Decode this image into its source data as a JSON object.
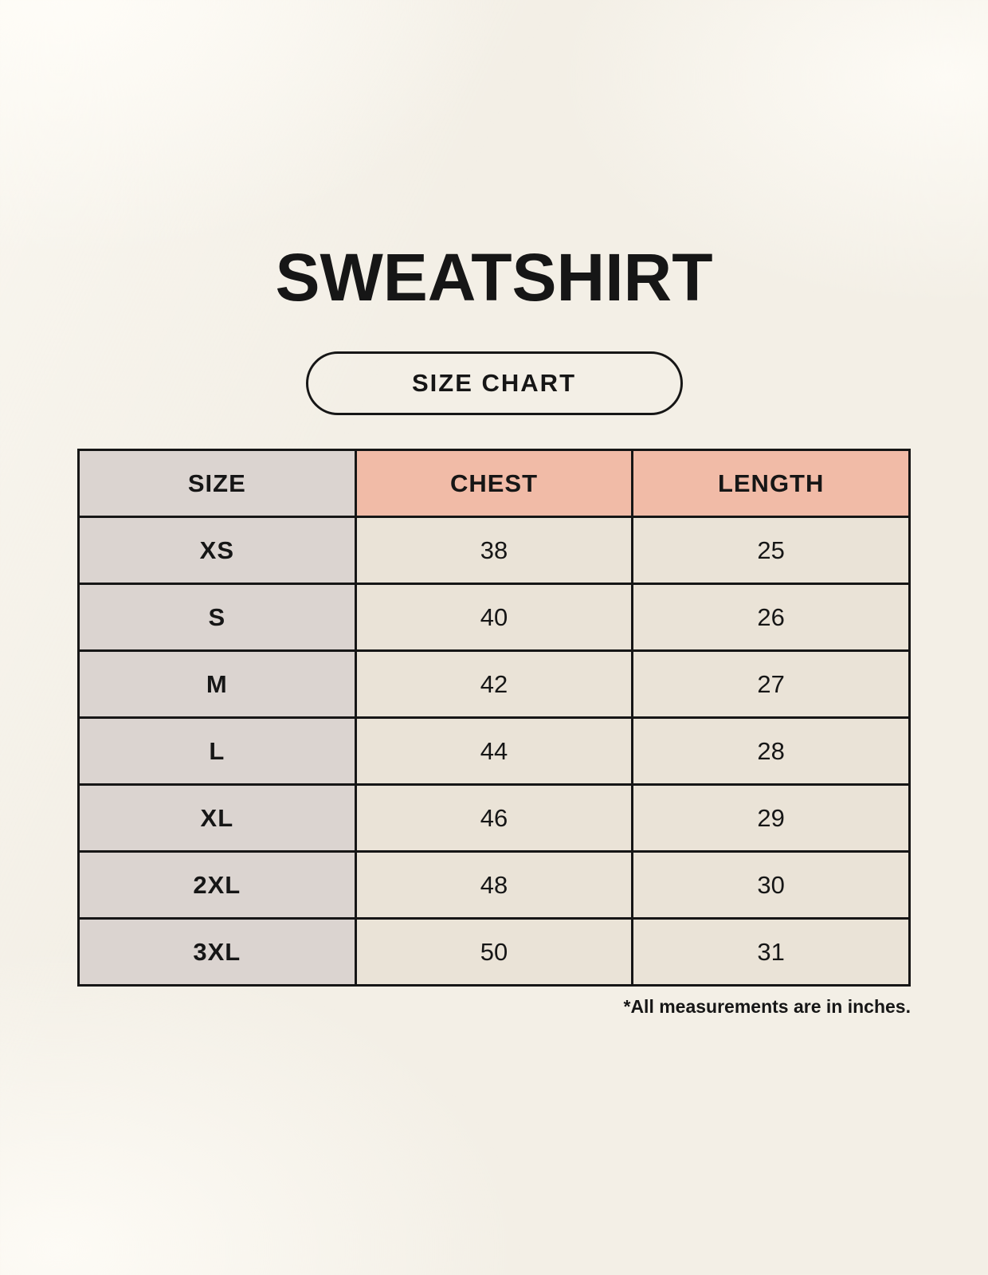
{
  "title": "SWEATSHIRT",
  "badge_label": "SIZE CHART",
  "footnote": "*All measurements are in inches.",
  "chart_data": {
    "type": "table",
    "title": "SWEATSHIRT",
    "subtitle": "SIZE CHART",
    "columns": [
      "SIZE",
      "CHEST",
      "LENGTH"
    ],
    "rows": [
      [
        "XS",
        "38",
        "25"
      ],
      [
        "S",
        "40",
        "26"
      ],
      [
        "M",
        "42",
        "27"
      ],
      [
        "L",
        "44",
        "28"
      ],
      [
        "XL",
        "46",
        "29"
      ],
      [
        "2XL",
        "48",
        "30"
      ],
      [
        "3XL",
        "50",
        "31"
      ]
    ],
    "units": "inches",
    "note": "*All measurements are in inches."
  },
  "colors": {
    "background": "#F3EFE6",
    "size_column_bg": "#DBD4D0",
    "header_accent_bg": "#F1BBA7",
    "data_cell_bg": "#EAE3D7",
    "border": "#161616",
    "text": "#161616"
  }
}
